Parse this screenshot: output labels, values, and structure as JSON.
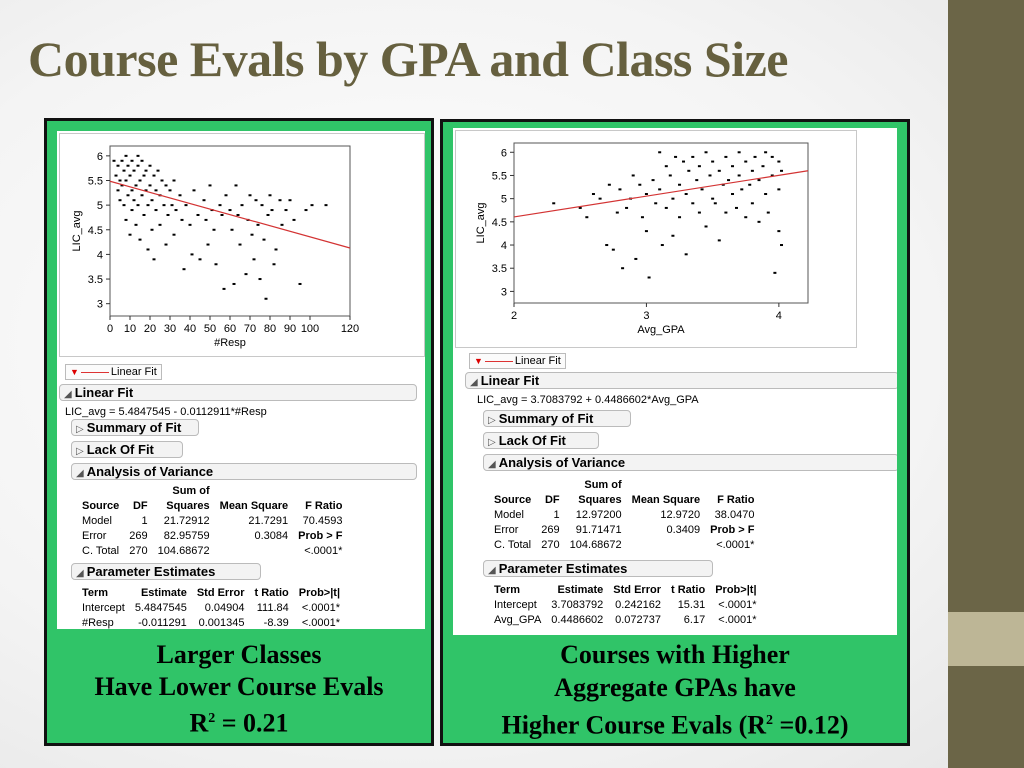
{
  "slide": {
    "title": "Course Evals by GPA and Class Size"
  },
  "colors": {
    "panel_green": "#30c468",
    "title_olive": "#66603f",
    "right_bar": "#6b6547",
    "accent_bar": "#bdb696",
    "fit_line": "#d33333"
  },
  "left_panel": {
    "legend_label": "Linear Fit",
    "linear_fit_header": "Linear Fit",
    "equation": "LIC_avg = 5.4847545 - 0.0112911*#Resp",
    "summary_of_fit": "Summary of Fit",
    "lack_of_fit": "Lack Of Fit",
    "anova_header": "Analysis of Variance",
    "anova": {
      "header_top": "Sum of",
      "columns": [
        "Source",
        "DF",
        "Squares",
        "Mean Square",
        "F Ratio"
      ],
      "rows": [
        [
          "Model",
          "1",
          "21.72912",
          "21.7291",
          "70.4593"
        ],
        [
          "Error",
          "269",
          "82.95759",
          "0.3084",
          "Prob > F"
        ],
        [
          "C. Total",
          "270",
          "104.68672",
          "",
          "<.0001*"
        ]
      ]
    },
    "param_header": "Parameter Estimates",
    "params": {
      "columns": [
        "Term",
        "Estimate",
        "Std Error",
        "t Ratio",
        "Prob>|t|"
      ],
      "rows": [
        [
          "Intercept",
          "5.4847545",
          "0.04904",
          "111.84",
          "<.0001*"
        ],
        [
          "#Resp",
          "-0.011291",
          "0.001345",
          "-8.39",
          "<.0001*"
        ]
      ]
    },
    "caption": {
      "line1": "Larger Classes",
      "line2": "Have Lower Course Evals",
      "line3_prefix": "R",
      "line3_sup": "2",
      "line3_suffix": " = 0.21"
    }
  },
  "right_panel": {
    "legend_label": "Linear Fit",
    "linear_fit_header": "Linear Fit",
    "equation": "LIC_avg = 3.7083792 + 0.4486602*Avg_GPA",
    "summary_of_fit": "Summary of Fit",
    "lack_of_fit": "Lack Of Fit",
    "anova_header": "Analysis of Variance",
    "anova": {
      "header_top": "Sum of",
      "columns": [
        "Source",
        "DF",
        "Squares",
        "Mean Square",
        "F Ratio"
      ],
      "rows": [
        [
          "Model",
          "1",
          "12.97200",
          "12.9720",
          "38.0470"
        ],
        [
          "Error",
          "269",
          "91.71471",
          "0.3409",
          "Prob > F"
        ],
        [
          "C. Total",
          "270",
          "104.68672",
          "",
          "<.0001*"
        ]
      ]
    },
    "param_header": "Parameter Estimates",
    "params": {
      "columns": [
        "Term",
        "Estimate",
        "Std Error",
        "t Ratio",
        "Prob>|t|"
      ],
      "rows": [
        [
          "Intercept",
          "3.7083792",
          "0.242162",
          "15.31",
          "<.0001*"
        ],
        [
          "Avg_GPA",
          "0.4486602",
          "0.072737",
          "6.17",
          "<.0001*"
        ]
      ]
    },
    "caption": {
      "line1": "Courses with Higher",
      "line2": "Aggregate GPAs have",
      "line3_prefix": "Higher Course Evals (R",
      "line3_sup": "2",
      "line3_suffix": " =0.12)"
    }
  },
  "chart_data": [
    {
      "type": "scatter",
      "title": "",
      "xlabel": "#Resp",
      "ylabel": "LIC_avg",
      "xlim": [
        0,
        120
      ],
      "ylim": [
        2.75,
        6.2
      ],
      "xticks": [
        0,
        10,
        20,
        30,
        40,
        50,
        60,
        70,
        80,
        90,
        100,
        120
      ],
      "xtick_labels": [
        "0",
        "10",
        "20",
        "30",
        "40",
        "50",
        "60",
        "70",
        "80",
        "90",
        "100",
        "120"
      ],
      "yticks": [
        3,
        3.5,
        4,
        4.5,
        5,
        5.5,
        6
      ],
      "ytick_labels": [
        "3",
        "3.5",
        "4",
        "4.5",
        "5",
        "5.5",
        "6"
      ],
      "fit": {
        "intercept": 5.4847545,
        "slope": -0.0112911
      },
      "points": [
        [
          2,
          5.9
        ],
        [
          3,
          5.6
        ],
        [
          4,
          5.8
        ],
        [
          4,
          5.3
        ],
        [
          5,
          5.5
        ],
        [
          5,
          5.1
        ],
        [
          6,
          5.9
        ],
        [
          6,
          5.4
        ],
        [
          7,
          5.7
        ],
        [
          7,
          5.0
        ],
        [
          8,
          6.0
        ],
        [
          8,
          5.5
        ],
        [
          8,
          4.7
        ],
        [
          9,
          5.8
        ],
        [
          9,
          5.2
        ],
        [
          10,
          5.6
        ],
        [
          10,
          4.4
        ],
        [
          11,
          5.9
        ],
        [
          11,
          5.3
        ],
        [
          11,
          4.9
        ],
        [
          12,
          5.7
        ],
        [
          12,
          5.1
        ],
        [
          13,
          5.4
        ],
        [
          13,
          4.6
        ],
        [
          14,
          6.0
        ],
        [
          14,
          5.8
        ],
        [
          14,
          5.0
        ],
        [
          15,
          5.5
        ],
        [
          15,
          4.3
        ],
        [
          16,
          5.9
        ],
        [
          16,
          5.2
        ],
        [
          17,
          5.6
        ],
        [
          17,
          4.8
        ],
        [
          18,
          5.7
        ],
        [
          18,
          5.3
        ],
        [
          19,
          5.0
        ],
        [
          19,
          4.1
        ],
        [
          20,
          5.8
        ],
        [
          20,
          5.4
        ],
        [
          21,
          5.1
        ],
        [
          21,
          4.5
        ],
        [
          22,
          5.6
        ],
        [
          22,
          3.9
        ],
        [
          23,
          5.3
        ],
        [
          23,
          4.9
        ],
        [
          24,
          5.7
        ],
        [
          25,
          5.2
        ],
        [
          25,
          4.6
        ],
        [
          26,
          5.5
        ],
        [
          27,
          5.0
        ],
        [
          28,
          5.4
        ],
        [
          28,
          4.2
        ],
        [
          29,
          4.8
        ],
        [
          30,
          5.3
        ],
        [
          31,
          5.0
        ],
        [
          32,
          5.5
        ],
        [
          32,
          4.4
        ],
        [
          33,
          4.9
        ],
        [
          35,
          5.2
        ],
        [
          36,
          4.7
        ],
        [
          37,
          3.7
        ],
        [
          38,
          5.0
        ],
        [
          40,
          4.6
        ],
        [
          41,
          4.0
        ],
        [
          42,
          5.3
        ],
        [
          44,
          4.8
        ],
        [
          45,
          3.9
        ],
        [
          47,
          5.1
        ],
        [
          48,
          4.7
        ],
        [
          49,
          4.2
        ],
        [
          50,
          5.4
        ],
        [
          51,
          4.9
        ],
        [
          52,
          4.5
        ],
        [
          53,
          3.8
        ],
        [
          55,
          5.0
        ],
        [
          56,
          4.8
        ],
        [
          57,
          3.3
        ],
        [
          58,
          5.2
        ],
        [
          60,
          4.9
        ],
        [
          61,
          4.5
        ],
        [
          62,
          3.4
        ],
        [
          63,
          5.4
        ],
        [
          64,
          4.8
        ],
        [
          65,
          4.2
        ],
        [
          66,
          5.0
        ],
        [
          68,
          3.6
        ],
        [
          69,
          4.7
        ],
        [
          70,
          5.2
        ],
        [
          71,
          4.4
        ],
        [
          72,
          3.9
        ],
        [
          73,
          5.1
        ],
        [
          74,
          4.6
        ],
        [
          75,
          3.5
        ],
        [
          76,
          5.0
        ],
        [
          77,
          4.3
        ],
        [
          78,
          3.1
        ],
        [
          79,
          4.8
        ],
        [
          80,
          5.2
        ],
        [
          81,
          4.9
        ],
        [
          82,
          3.8
        ],
        [
          83,
          4.1
        ],
        [
          85,
          5.1
        ],
        [
          86,
          4.6
        ],
        [
          88,
          4.9
        ],
        [
          90,
          5.1
        ],
        [
          92,
          4.7
        ],
        [
          95,
          3.4
        ],
        [
          98,
          4.9
        ],
        [
          101,
          5.0
        ],
        [
          108,
          5.0
        ]
      ]
    },
    {
      "type": "scatter",
      "title": "",
      "xlabel": "Avg_GPA",
      "ylabel": "LIC_avg",
      "xlim": [
        2.0,
        4.22
      ],
      "ylim": [
        2.75,
        6.2
      ],
      "xticks": [
        2,
        3,
        4
      ],
      "xtick_labels": [
        "2",
        "3",
        "4"
      ],
      "yticks": [
        3,
        3.5,
        4,
        4.5,
        5,
        5.5,
        6
      ],
      "ytick_labels": [
        "3",
        "3.5",
        "4",
        "4.5",
        "5",
        "5.5",
        "6"
      ],
      "fit": {
        "intercept": 3.7083792,
        "slope": 0.4486602
      },
      "points": [
        [
          2.3,
          4.9
        ],
        [
          2.5,
          4.8
        ],
        [
          2.55,
          4.6
        ],
        [
          2.6,
          5.1
        ],
        [
          2.65,
          5.0
        ],
        [
          2.7,
          4.0
        ],
        [
          2.72,
          5.3
        ],
        [
          2.75,
          3.9
        ],
        [
          2.78,
          4.7
        ],
        [
          2.8,
          5.2
        ],
        [
          2.82,
          3.5
        ],
        [
          2.85,
          4.8
        ],
        [
          2.88,
          5.0
        ],
        [
          2.9,
          5.5
        ],
        [
          2.92,
          3.7
        ],
        [
          2.95,
          5.3
        ],
        [
          2.97,
          4.6
        ],
        [
          3.0,
          5.1
        ],
        [
          3.0,
          4.3
        ],
        [
          3.02,
          3.3
        ],
        [
          3.05,
          5.4
        ],
        [
          3.07,
          4.9
        ],
        [
          3.1,
          6.0
        ],
        [
          3.1,
          5.2
        ],
        [
          3.12,
          4.0
        ],
        [
          3.15,
          5.7
        ],
        [
          3.15,
          4.8
        ],
        [
          3.18,
          5.5
        ],
        [
          3.2,
          5.0
        ],
        [
          3.2,
          4.2
        ],
        [
          3.22,
          5.9
        ],
        [
          3.25,
          5.3
        ],
        [
          3.25,
          4.6
        ],
        [
          3.28,
          5.8
        ],
        [
          3.3,
          5.1
        ],
        [
          3.3,
          3.8
        ],
        [
          3.32,
          5.6
        ],
        [
          3.35,
          4.9
        ],
        [
          3.35,
          5.9
        ],
        [
          3.38,
          5.4
        ],
        [
          3.4,
          4.7
        ],
        [
          3.4,
          5.7
        ],
        [
          3.42,
          5.2
        ],
        [
          3.45,
          6.0
        ],
        [
          3.45,
          4.4
        ],
        [
          3.48,
          5.5
        ],
        [
          3.5,
          5.0
        ],
        [
          3.5,
          5.8
        ],
        [
          3.52,
          4.9
        ],
        [
          3.55,
          5.6
        ],
        [
          3.55,
          4.1
        ],
        [
          3.58,
          5.3
        ],
        [
          3.6,
          5.9
        ],
        [
          3.6,
          4.7
        ],
        [
          3.62,
          5.4
        ],
        [
          3.65,
          5.1
        ],
        [
          3.65,
          5.7
        ],
        [
          3.68,
          4.8
        ],
        [
          3.7,
          5.5
        ],
        [
          3.7,
          6.0
        ],
        [
          3.72,
          5.2
        ],
        [
          3.75,
          4.6
        ],
        [
          3.75,
          5.8
        ],
        [
          3.78,
          5.3
        ],
        [
          3.8,
          5.6
        ],
        [
          3.8,
          4.9
        ],
        [
          3.82,
          5.9
        ],
        [
          3.85,
          5.4
        ],
        [
          3.85,
          4.5
        ],
        [
          3.88,
          5.7
        ],
        [
          3.9,
          5.1
        ],
        [
          3.9,
          6.0
        ],
        [
          3.92,
          4.7
        ],
        [
          3.95,
          5.5
        ],
        [
          3.95,
          5.9
        ],
        [
          3.97,
          3.4
        ],
        [
          4.0,
          5.2
        ],
        [
          4.0,
          5.8
        ],
        [
          4.0,
          4.3
        ],
        [
          4.02,
          5.6
        ],
        [
          4.02,
          4.0
        ]
      ]
    }
  ]
}
